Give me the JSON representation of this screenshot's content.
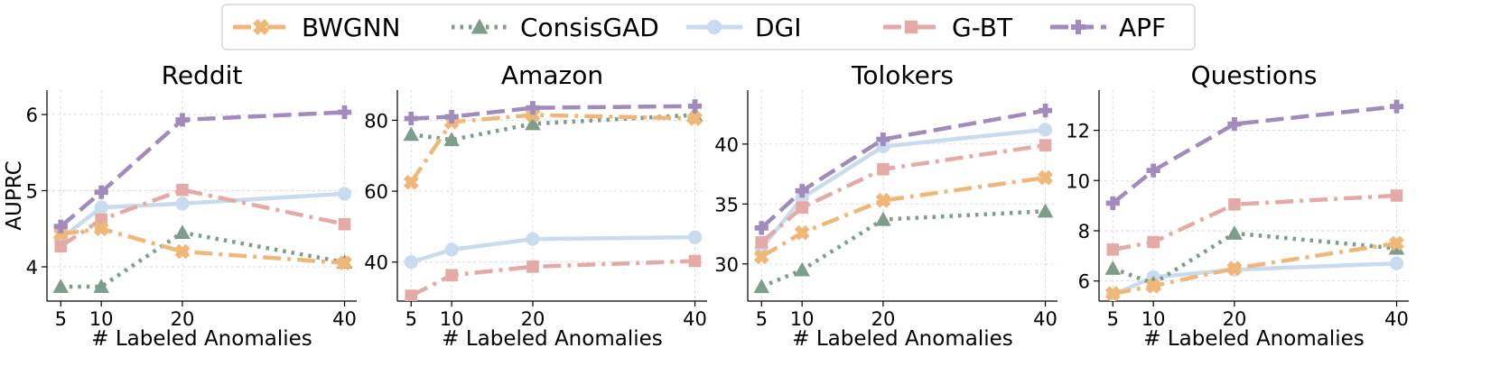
{
  "legend": {
    "position": "top-center",
    "entries": [
      "BWGNN",
      "ConsisGAD",
      "DGI",
      "G-BT",
      "APF"
    ]
  },
  "styles": {
    "BWGNN": {
      "color": "#f0b878",
      "marker": "x-icon",
      "dash": "dashdot"
    },
    "ConsisGAD": {
      "color": "#7e9e8c",
      "marker": "triangle-icon",
      "dash": "dotted"
    },
    "DGI": {
      "color": "#c9dbee",
      "marker": "circle-icon",
      "dash": "solid"
    },
    "G-BT": {
      "color": "#e3aaa6",
      "marker": "square-icon",
      "dash": "dashdot"
    },
    "APF": {
      "color": "#a08bbc",
      "marker": "plus-icon",
      "dash": "dashed"
    }
  },
  "chart_data": [
    {
      "type": "line",
      "title": "Reddit",
      "xlabel": "# Labeled Anomalies",
      "ylabel": "AUPRC",
      "x": [
        5,
        10,
        20,
        40
      ],
      "xticks": [
        "5",
        "10",
        "20",
        "40"
      ],
      "xlim": [
        3.3,
        41.5
      ],
      "ylim": [
        3.55,
        6.32
      ],
      "yticks": [
        4,
        5,
        6
      ],
      "yticklabels": [
        "4",
        "5",
        "6"
      ],
      "grid": true,
      "series": [
        {
          "name": "BWGNN",
          "values": [
            4.43,
            4.5,
            4.2,
            4.05
          ]
        },
        {
          "name": "ConsisGAD",
          "values": [
            3.74,
            3.74,
            4.45,
            4.06
          ]
        },
        {
          "name": "DGI",
          "values": [
            4.37,
            4.78,
            4.83,
            4.96
          ]
        },
        {
          "name": "G-BT",
          "values": [
            4.27,
            4.62,
            5.01,
            4.56
          ]
        },
        {
          "name": "APF",
          "values": [
            4.53,
            4.98,
            5.93,
            6.03
          ]
        }
      ]
    },
    {
      "type": "line",
      "title": "Amazon",
      "xlabel": "# Labeled Anomalies",
      "ylabel": "",
      "x": [
        5,
        10,
        20,
        40
      ],
      "xticks": [
        "5",
        "10",
        "20",
        "40"
      ],
      "xlim": [
        3.3,
        41.5
      ],
      "ylim": [
        29,
        88.5
      ],
      "yticks": [
        40,
        60,
        80
      ],
      "yticklabels": [
        "40",
        "60",
        "80"
      ],
      "grid": true,
      "series": [
        {
          "name": "BWGNN",
          "values": [
            62.5,
            79.5,
            81.5,
            80.5
          ]
        },
        {
          "name": "ConsisGAD",
          "values": [
            76.0,
            74.5,
            79.0,
            81.5
          ]
        },
        {
          "name": "DGI",
          "values": [
            40.0,
            43.5,
            46.5,
            47.0
          ]
        },
        {
          "name": "G-BT",
          "values": [
            30.5,
            36.3,
            38.7,
            40.3
          ]
        },
        {
          "name": "APF",
          "values": [
            80.5,
            81.0,
            83.5,
            84.0
          ]
        }
      ]
    },
    {
      "type": "line",
      "title": "Tolokers",
      "xlabel": "# Labeled Anomalies",
      "ylabel": "",
      "x": [
        5,
        10,
        20,
        40
      ],
      "xticks": [
        "5",
        "10",
        "20",
        "40"
      ],
      "xlim": [
        3.3,
        41.5
      ],
      "ylim": [
        26.9,
        44.5
      ],
      "yticks": [
        30,
        35,
        40
      ],
      "yticklabels": [
        "30",
        "35",
        "40"
      ],
      "grid": true,
      "series": [
        {
          "name": "BWGNN",
          "values": [
            30.6,
            32.6,
            35.3,
            37.2
          ]
        },
        {
          "name": "ConsisGAD",
          "values": [
            28.1,
            29.5,
            33.7,
            34.4
          ]
        },
        {
          "name": "DGI",
          "values": [
            31.3,
            35.5,
            39.8,
            41.2
          ]
        },
        {
          "name": "G-BT",
          "values": [
            31.8,
            34.7,
            37.9,
            39.9
          ]
        },
        {
          "name": "APF",
          "values": [
            33.0,
            36.1,
            40.4,
            42.8
          ]
        }
      ]
    },
    {
      "type": "line",
      "title": "Questions",
      "xlabel": "# Labeled Anomalies",
      "ylabel": "",
      "x": [
        5,
        10,
        20,
        40
      ],
      "xticks": [
        "5",
        "10",
        "20",
        "40"
      ],
      "xlim": [
        3.3,
        41.5
      ],
      "ylim": [
        5.2,
        13.6
      ],
      "yticks": [
        6,
        8,
        10,
        12
      ],
      "yticklabels": [
        "6",
        "8",
        "10",
        "12"
      ],
      "grid": true,
      "series": [
        {
          "name": "BWGNN",
          "values": [
            5.5,
            5.8,
            6.5,
            7.5
          ]
        },
        {
          "name": "ConsisGAD",
          "values": [
            6.5,
            5.9,
            7.9,
            7.3
          ]
        },
        {
          "name": "DGI",
          "values": [
            5.45,
            6.15,
            6.45,
            6.7
          ]
        },
        {
          "name": "G-BT",
          "values": [
            7.25,
            7.55,
            9.05,
            9.4
          ]
        },
        {
          "name": "APF",
          "values": [
            9.1,
            10.4,
            12.25,
            12.95
          ]
        }
      ]
    }
  ]
}
